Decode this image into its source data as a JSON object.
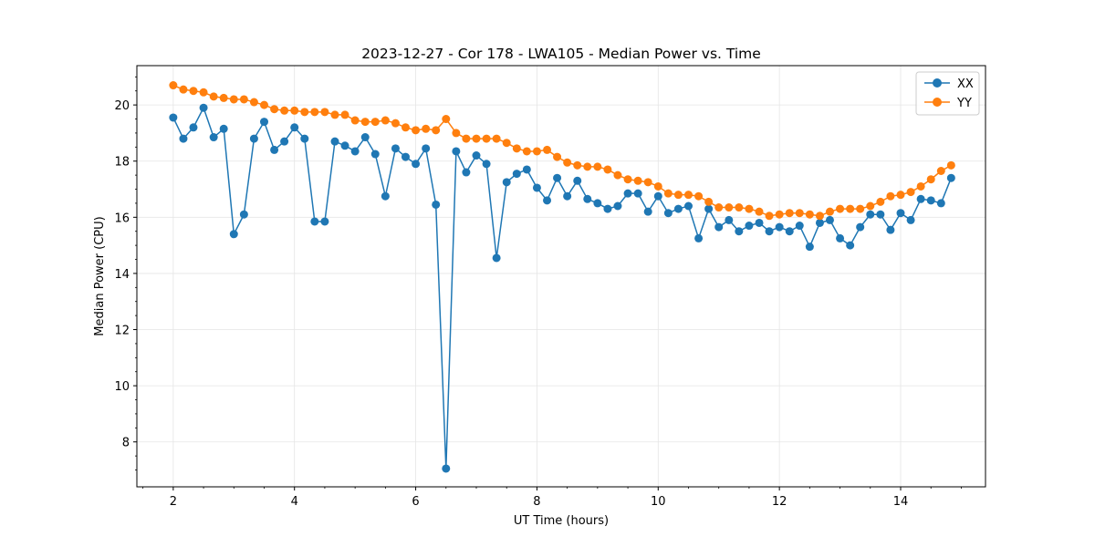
{
  "chart_data": {
    "type": "line",
    "title": "2023-12-27 - Cor 178 - LWA105 - Median Power vs. Time",
    "xlabel": "UT Time (hours)",
    "ylabel": "Median Power (CPU)",
    "xlim": [
      1.4,
      15.4
    ],
    "ylim": [
      6.4,
      21.4
    ],
    "xticks": [
      2,
      4,
      6,
      8,
      10,
      12,
      14
    ],
    "yticks": [
      8,
      10,
      12,
      14,
      16,
      18,
      20
    ],
    "grid": true,
    "legend_position": "top-right",
    "x": [
      2.0,
      2.167,
      2.333,
      2.5,
      2.667,
      2.833,
      3.0,
      3.167,
      3.333,
      3.5,
      3.667,
      3.833,
      4.0,
      4.167,
      4.333,
      4.5,
      4.667,
      4.833,
      5.0,
      5.167,
      5.333,
      5.5,
      5.667,
      5.833,
      6.0,
      6.167,
      6.333,
      6.5,
      6.667,
      6.833,
      7.0,
      7.167,
      7.333,
      7.5,
      7.667,
      7.833,
      8.0,
      8.167,
      8.333,
      8.5,
      8.667,
      8.833,
      9.0,
      9.167,
      9.333,
      9.5,
      9.667,
      9.833,
      10.0,
      10.167,
      10.333,
      10.5,
      10.667,
      10.833,
      11.0,
      11.167,
      11.333,
      11.5,
      11.667,
      11.833,
      12.0,
      12.167,
      12.333,
      12.5,
      12.667,
      12.833,
      13.0,
      13.167,
      13.333,
      13.5,
      13.667,
      13.833,
      14.0,
      14.167,
      14.333,
      14.5,
      14.667,
      14.833
    ],
    "series": [
      {
        "name": "XX",
        "color": "#1f77b4",
        "values": [
          19.55,
          18.8,
          19.2,
          19.9,
          18.85,
          19.15,
          15.4,
          16.1,
          18.8,
          19.4,
          18.4,
          18.7,
          19.2,
          18.8,
          15.85,
          15.85,
          18.7,
          18.55,
          18.35,
          18.85,
          18.25,
          16.75,
          18.45,
          18.15,
          17.9,
          18.45,
          16.45,
          7.05,
          18.35,
          17.6,
          18.2,
          17.9,
          14.55,
          17.25,
          17.55,
          17.7,
          17.05,
          16.6,
          17.4,
          16.75,
          17.3,
          16.65,
          16.5,
          16.3,
          16.4,
          16.85,
          16.85,
          16.2,
          16.75,
          16.15,
          16.3,
          16.4,
          15.25,
          16.3,
          15.65,
          15.9,
          15.5,
          15.7,
          15.8,
          15.5,
          15.65,
          15.5,
          15.7,
          14.95,
          15.8,
          15.9,
          15.25,
          15.0,
          15.65,
          16.1,
          16.1,
          15.55,
          16.15,
          15.9,
          16.65,
          16.6,
          16.5,
          17.4
        ]
      },
      {
        "name": "YY",
        "color": "#ff7f0e",
        "values": [
          20.7,
          20.55,
          20.5,
          20.45,
          20.3,
          20.25,
          20.2,
          20.2,
          20.1,
          20.0,
          19.85,
          19.8,
          19.8,
          19.75,
          19.75,
          19.75,
          19.65,
          19.65,
          19.45,
          19.4,
          19.4,
          19.45,
          19.35,
          19.2,
          19.1,
          19.15,
          19.1,
          19.5,
          19.0,
          18.8,
          18.8,
          18.8,
          18.8,
          18.65,
          18.45,
          18.35,
          18.35,
          18.4,
          18.15,
          17.95,
          17.85,
          17.8,
          17.8,
          17.7,
          17.5,
          17.35,
          17.3,
          17.25,
          17.1,
          16.85,
          16.8,
          16.8,
          16.75,
          16.55,
          16.35,
          16.35,
          16.35,
          16.3,
          16.2,
          16.05,
          16.1,
          16.15,
          16.15,
          16.1,
          16.05,
          16.2,
          16.3,
          16.3,
          16.3,
          16.4,
          16.55,
          16.75,
          16.8,
          16.9,
          17.1,
          17.35,
          17.65,
          17.85
        ]
      }
    ]
  }
}
